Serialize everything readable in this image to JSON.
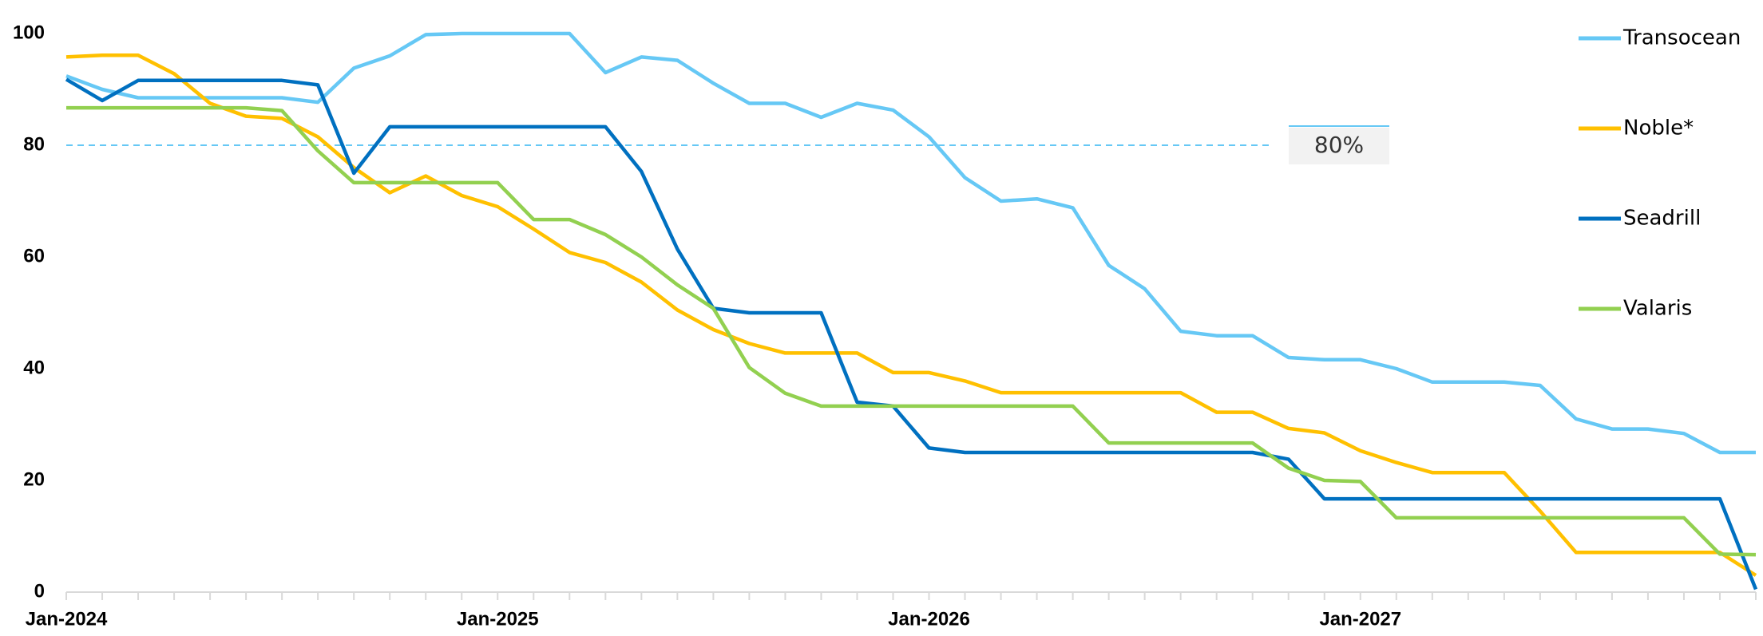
{
  "chart_data": {
    "type": "line",
    "x": [
      "Jan-2024",
      null,
      null,
      null,
      null,
      null,
      null,
      null,
      null,
      null,
      null,
      null,
      "Jan-2025",
      null,
      null,
      null,
      null,
      null,
      null,
      null,
      null,
      null,
      null,
      null,
      "Jan-2026",
      null,
      null,
      null,
      null,
      null,
      null,
      null,
      null,
      null,
      null,
      null,
      "Jan-2027",
      null,
      null,
      null,
      null,
      null,
      null,
      null,
      null,
      null,
      null,
      null
    ],
    "ylim": [
      0,
      100
    ],
    "yticks": [
      0,
      20,
      40,
      60,
      80,
      100
    ],
    "legend": "right",
    "reference_line": {
      "value": 80,
      "label": "80%",
      "color": "#66c8f5"
    },
    "series": [
      {
        "name": "Transocean",
        "color": "#66c8f5",
        "values": [
          92.4,
          90,
          88.5,
          88.5,
          88.5,
          88.5,
          88.5,
          87.7,
          93.8,
          96,
          99.8,
          100,
          100,
          100,
          100,
          93,
          95.8,
          95.2,
          91.1,
          87.5,
          87.5,
          85,
          87.5,
          86.3,
          81.5,
          74.2,
          70,
          70.4,
          68.8,
          58.5,
          54.3,
          46.7,
          45.9,
          45.9,
          42,
          41.6,
          41.6,
          40,
          37.6,
          37.6,
          37.6,
          37,
          31,
          29.2,
          29.2,
          28.4,
          25,
          25
        ]
      },
      {
        "name": "Noble*",
        "color": "#ffc000",
        "values": [
          95.8,
          96.1,
          96.1,
          92.8,
          87.5,
          85.2,
          84.8,
          81.5,
          76,
          71.5,
          74.5,
          71,
          69,
          65,
          60.8,
          59,
          55.5,
          50.5,
          47,
          44.5,
          42.8,
          42.8,
          42.8,
          39.3,
          39.3,
          37.8,
          35.7,
          35.7,
          35.7,
          35.7,
          35.7,
          35.7,
          32.2,
          32.2,
          29.3,
          28.5,
          25.3,
          23.2,
          21.4,
          21.4,
          21.4,
          14.5,
          7.1,
          7.1,
          7.1,
          7.1,
          7.1,
          3
        ]
      },
      {
        "name": "Seadrill",
        "color": "#0070c0",
        "values": [
          91.8,
          88,
          91.6,
          91.6,
          91.6,
          91.6,
          91.6,
          90.8,
          75,
          83.3,
          83.3,
          83.3,
          83.3,
          83.3,
          83.3,
          83.3,
          75.3,
          61.4,
          50.8,
          50,
          50,
          50,
          34,
          33.3,
          25.8,
          25,
          25,
          25,
          25,
          25,
          25,
          25,
          25,
          25,
          23.8,
          16.7,
          16.7,
          16.7,
          16.7,
          16.7,
          16.7,
          16.7,
          16.7,
          16.7,
          16.7,
          16.7,
          16.7,
          0.5
        ]
      },
      {
        "name": "Valaris",
        "color": "#92d050",
        "values": [
          86.7,
          86.7,
          86.7,
          86.7,
          86.7,
          86.7,
          86.2,
          79,
          73.3,
          73.3,
          73.3,
          73.3,
          73.3,
          66.7,
          66.7,
          64,
          60,
          55,
          50.8,
          40.2,
          35.6,
          33.3,
          33.3,
          33.3,
          33.3,
          33.3,
          33.3,
          33.3,
          33.3,
          26.7,
          26.7,
          26.7,
          26.7,
          26.7,
          22.2,
          20,
          19.8,
          13.3,
          13.3,
          13.3,
          13.3,
          13.3,
          13.3,
          13.3,
          13.3,
          13.3,
          6.8,
          6.7
        ]
      }
    ]
  }
}
